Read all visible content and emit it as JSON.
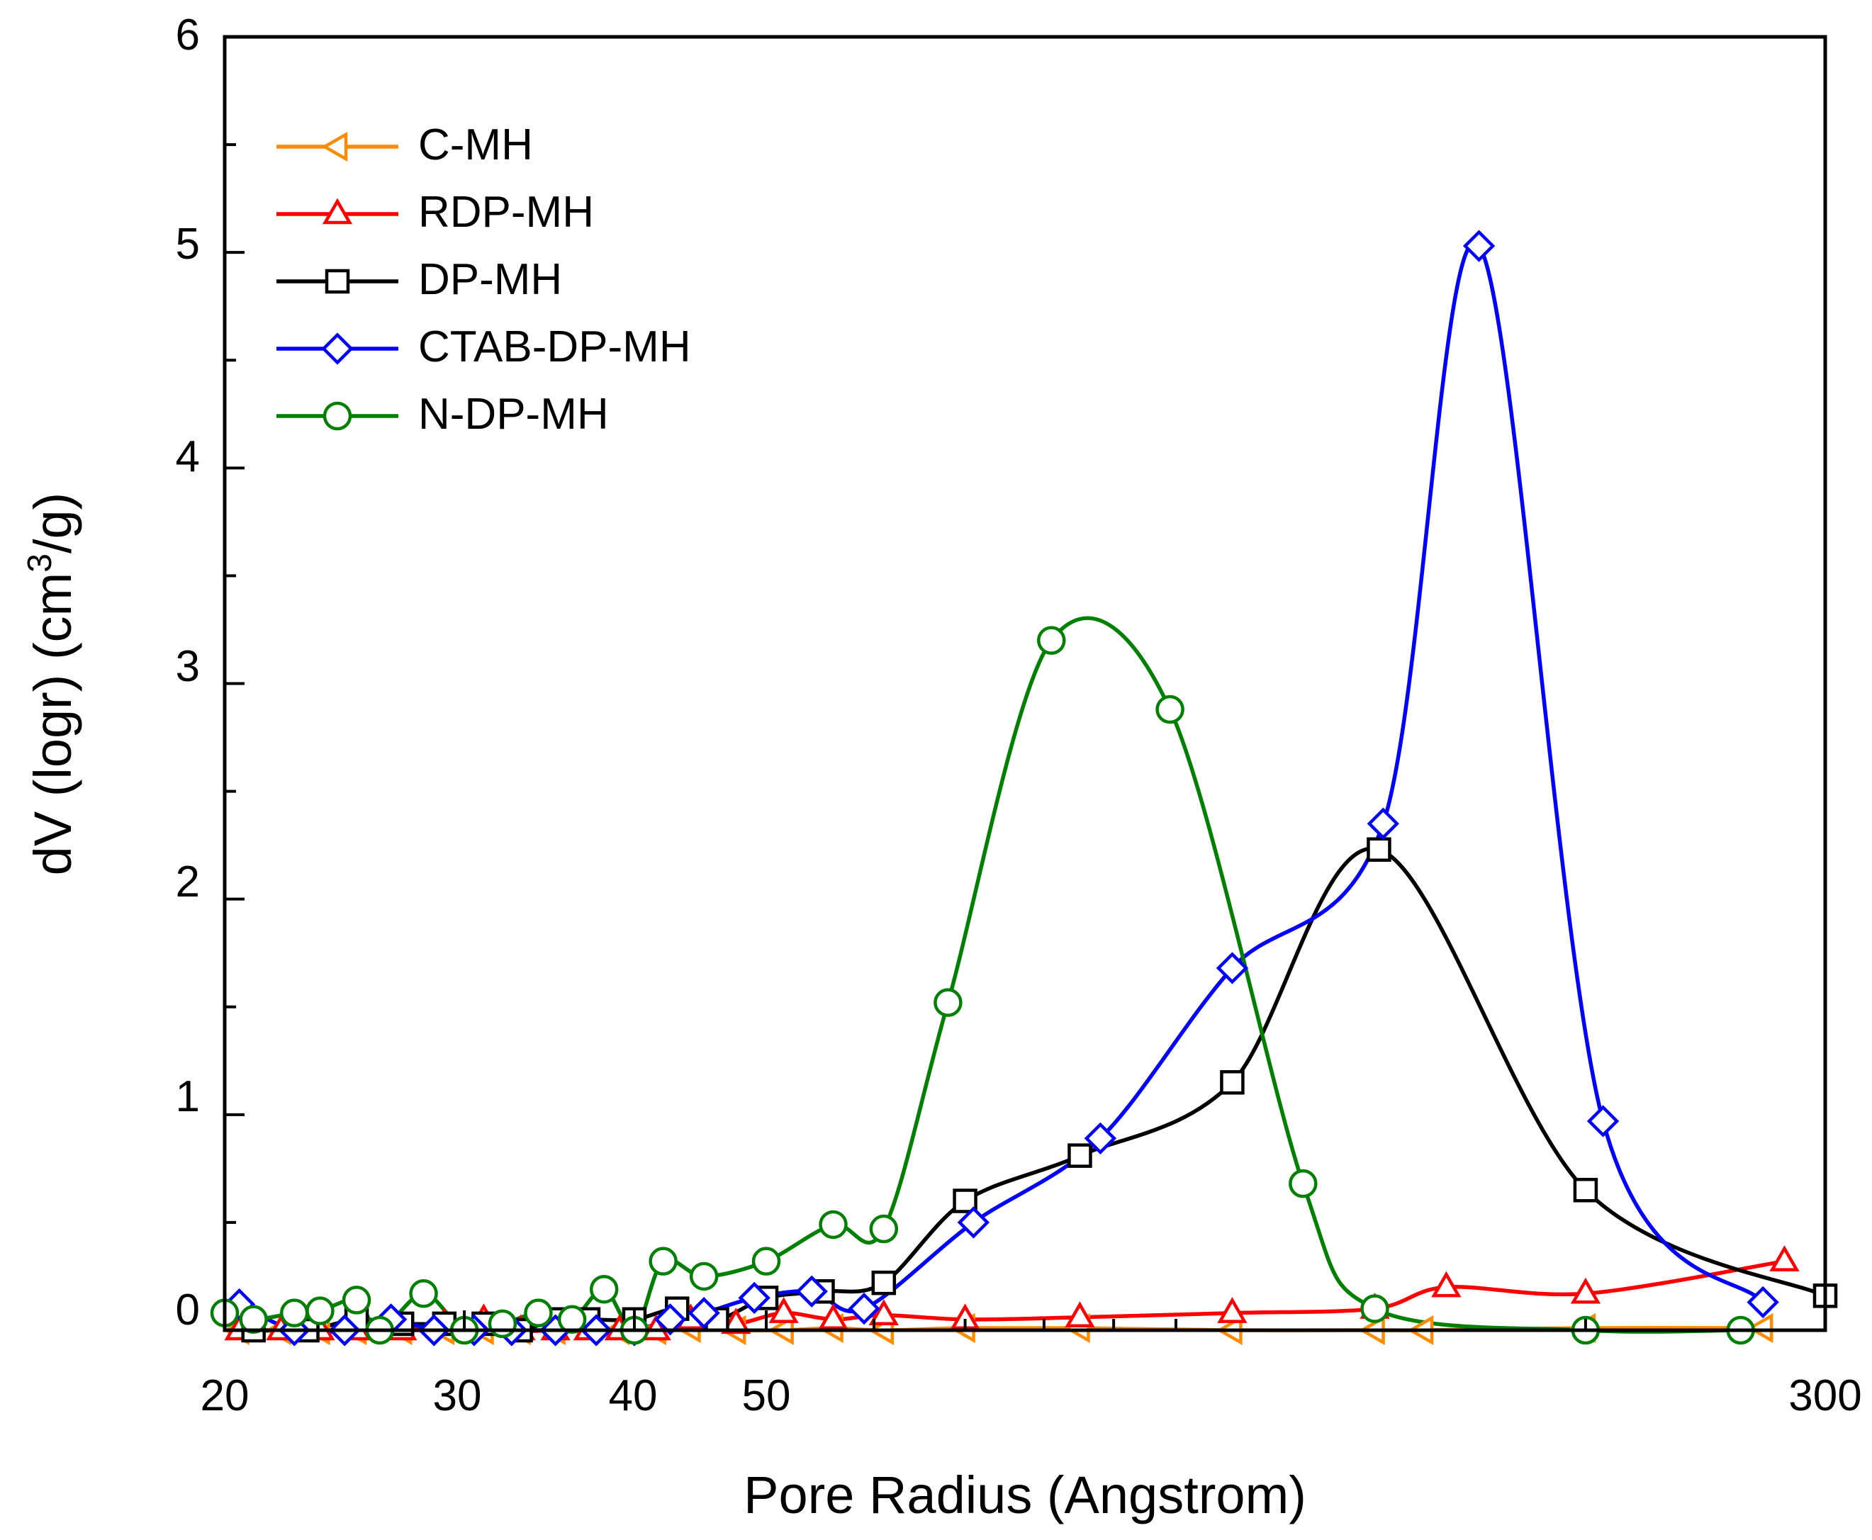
{
  "chart_data": {
    "type": "line",
    "title": "",
    "xlabel": "Pore Radius (Angstrom)",
    "ylabel_prefix": "dV (logr) (cm",
    "ylabel_sup": "3",
    "ylabel_suffix": "/g)",
    "x_scale": "log",
    "xlim": [
      20,
      300
    ],
    "ylim": [
      0,
      6
    ],
    "x_tick_labels": [
      "20",
      "30",
      "40",
      "50",
      "300"
    ],
    "y_tick_labels": [
      "0",
      "1",
      "2",
      "3",
      "4",
      "5",
      "6"
    ],
    "legend_position": "top-left",
    "series": [
      {
        "name": "C-MH",
        "color": "#FF8C00",
        "marker": "triangle-left",
        "x": [
          20.5,
          22.0,
          23.5,
          25.0,
          27.0,
          29.0,
          31.0,
          33.0,
          35.0,
          37.0,
          39.0,
          41.5,
          44.0,
          47.5,
          51.5,
          56.0,
          61.0,
          70.0,
          85.0,
          110.0,
          140.0,
          152.0,
          200.0,
          270.0
        ],
        "y": [
          0.0,
          0.0,
          0.0,
          0.0,
          0.0,
          0.0,
          0.0,
          0.0,
          0.0,
          0.0,
          0.0,
          0.0,
          0.01,
          0.0,
          0.0,
          0.01,
          0.0,
          0.01,
          0.01,
          0.0,
          0.0,
          0.0,
          0.01,
          0.01
        ]
      },
      {
        "name": "RDP-MH",
        "color": "#FF0000",
        "marker": "triangle-up",
        "x": [
          20.5,
          22.0,
          23.5,
          25.0,
          27.0,
          29.0,
          31.0,
          33.0,
          35.0,
          37.0,
          39.0,
          41.5,
          44.0,
          47.5,
          51.5,
          56.0,
          61.0,
          70.0,
          85.0,
          110.0,
          140.0,
          158.0,
          200.0,
          280.0
        ],
        "y": [
          0.0,
          0.0,
          0.0,
          0.0,
          0.0,
          0.03,
          0.05,
          0.0,
          0.0,
          0.0,
          0.0,
          0.0,
          0.05,
          0.03,
          0.08,
          0.05,
          0.07,
          0.05,
          0.06,
          0.08,
          0.1,
          0.2,
          0.17,
          0.32
        ]
      },
      {
        "name": "DP-MH",
        "color": "#000000",
        "marker": "square",
        "x": [
          21.0,
          23.0,
          25.0,
          27.0,
          29.0,
          31.0,
          33.0,
          35.0,
          37.0,
          40.0,
          43.0,
          46.0,
          50.0,
          55.0,
          61.0,
          70.0,
          85.0,
          110.0,
          141.0,
          200.0,
          300.0
        ],
        "y": [
          0.0,
          0.0,
          0.05,
          0.03,
          0.03,
          0.03,
          0.0,
          0.05,
          0.05,
          0.05,
          0.1,
          0.05,
          0.15,
          0.18,
          0.22,
          0.6,
          0.81,
          1.15,
          2.23,
          0.65,
          0.16
        ]
      },
      {
        "name": "CTAB-DP-MH",
        "color": "#0000FF",
        "marker": "diamond",
        "x": [
          20.5,
          22.5,
          24.5,
          26.5,
          28.5,
          30.5,
          32.5,
          35.0,
          37.5,
          40.0,
          42.5,
          45.0,
          49.0,
          54.0,
          59.0,
          71.0,
          88.0,
          110.0,
          142.0,
          167.0,
          206.0,
          270.0
        ],
        "y": [
          0.12,
          0.0,
          0.0,
          0.05,
          0.0,
          0.0,
          0.0,
          0.0,
          0.0,
          0.0,
          0.05,
          0.08,
          0.15,
          0.18,
          0.1,
          0.5,
          0.89,
          1.68,
          2.35,
          5.03,
          0.97,
          0.13
        ]
      },
      {
        "name": "N-DP-MH",
        "color": "#008000",
        "marker": "circle",
        "x": [
          20.0,
          21.0,
          22.5,
          23.5,
          25.0,
          26.0,
          28.0,
          30.0,
          32.0,
          34.0,
          36.0,
          38.0,
          40.0,
          42.0,
          45.0,
          50.0,
          56.0,
          61.0,
          68.0,
          81.0,
          99.0,
          124.0,
          140.0,
          200.0,
          260.0
        ],
        "y": [
          0.08,
          0.05,
          0.08,
          0.09,
          0.14,
          0.0,
          0.17,
          0.0,
          0.03,
          0.08,
          0.05,
          0.19,
          0.0,
          0.32,
          0.25,
          0.32,
          0.49,
          0.47,
          1.52,
          3.2,
          2.88,
          0.68,
          0.1,
          0.0,
          0.0
        ]
      }
    ]
  }
}
